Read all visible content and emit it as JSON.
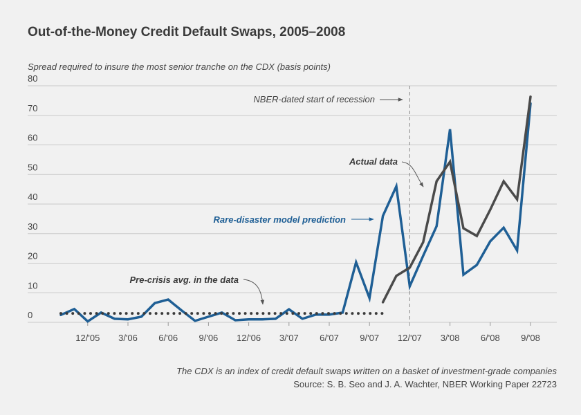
{
  "chart_data": {
    "type": "line",
    "title": "Out-of-the-Money Credit Default Swaps, 2005–2008",
    "subtitle": "Spread required to insure the most senior tranche on the CDX (basis points)",
    "categories": [
      null,
      null,
      "12/'05",
      null,
      null,
      "3/'06",
      null,
      null,
      "6/'06",
      null,
      null,
      "9/'06",
      null,
      null,
      "12/'06",
      null,
      null,
      "3/'07",
      null,
      null,
      "6/'07",
      null,
      null,
      "9/'07",
      null,
      null,
      "12/'07",
      null,
      null,
      "3/'08",
      null,
      null,
      "6/'08",
      null,
      null,
      "9/'08"
    ],
    "series": [
      {
        "name": "Rare-disaster model prediction",
        "color": "#1f5f95",
        "line_style": "solid",
        "values": [
          2.5,
          4.5,
          0.3,
          3.3,
          1.2,
          1,
          1.9,
          6.5,
          7.7,
          4,
          0.5,
          1.9,
          3.3,
          0.7,
          1,
          1,
          1.2,
          4.4,
          1.2,
          2.6,
          2.6,
          3.3,
          20.3,
          8.2,
          36,
          46,
          12.2,
          22.5,
          32.5,
          65.3,
          16.1,
          19.4,
          27.4,
          32,
          24.3,
          74
        ]
      },
      {
        "name": "Actual data",
        "color": "#4a4a4a",
        "line_style": "solid",
        "values": [
          null,
          null,
          null,
          null,
          null,
          null,
          null,
          null,
          null,
          null,
          null,
          null,
          null,
          null,
          null,
          null,
          null,
          null,
          null,
          null,
          null,
          null,
          null,
          null,
          6.8,
          15.7,
          18.5,
          27.1,
          47.7,
          54.3,
          31.8,
          29.2,
          38.1,
          47.7,
          41.6,
          76.3
        ]
      },
      {
        "name": "Pre-crisis avg. in the data",
        "color": "#3a3a3a",
        "line_style": "dotted",
        "values": [
          3,
          3,
          3,
          3,
          3,
          3,
          3,
          3,
          3,
          3,
          3,
          3,
          3,
          3,
          3,
          3,
          3,
          3,
          3,
          3,
          3,
          3,
          3,
          3,
          3,
          null,
          null,
          null,
          null,
          null,
          null,
          null,
          null,
          null,
          null,
          null
        ]
      }
    ],
    "ylim": [
      0,
      80
    ],
    "yticks": [
      0,
      10,
      20,
      30,
      40,
      50,
      60,
      70,
      80
    ],
    "grid": true,
    "recession_start": "12/'07",
    "recession_label": "NBER-dated start of recession",
    "note": "The CDX is an index of credit default swaps written on a basket of investment-grade companies",
    "source": "Source: S. B. Seo and J. A. Wachter, NBER Working Paper 22723"
  }
}
